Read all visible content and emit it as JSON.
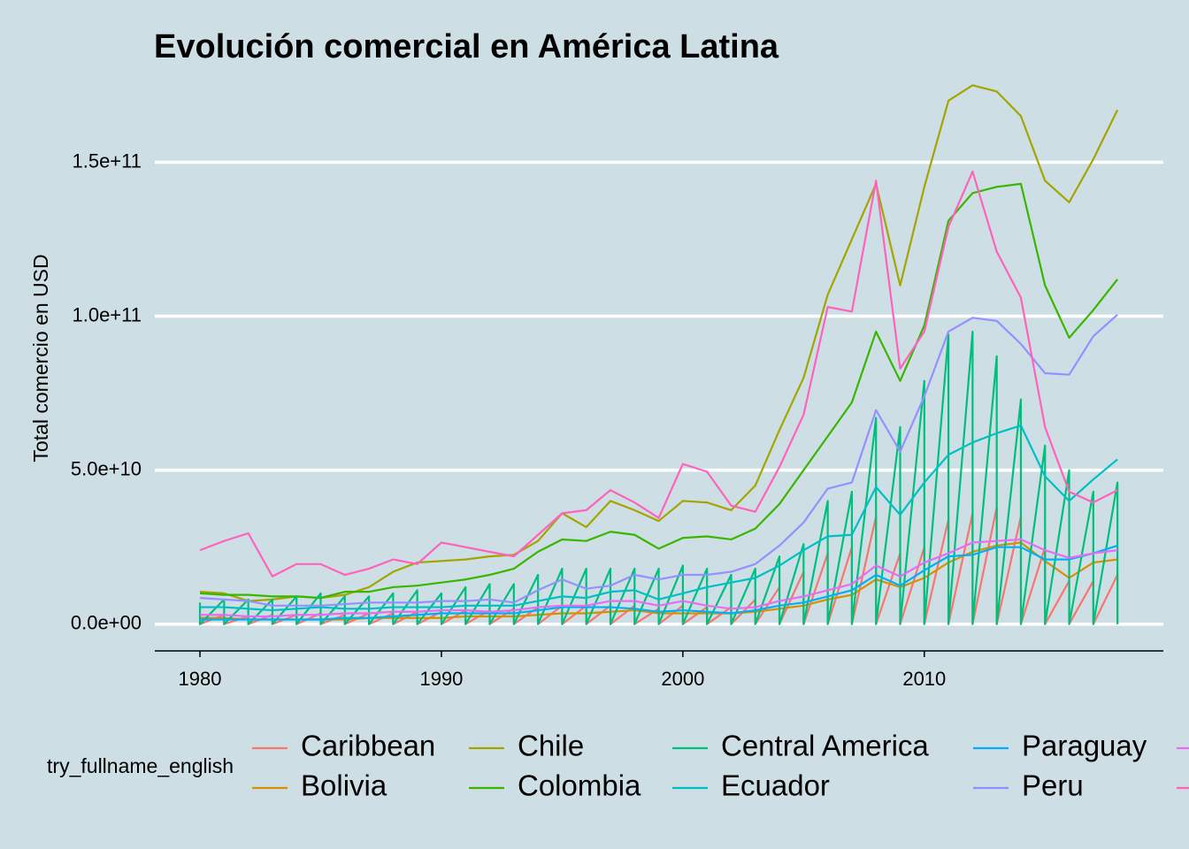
{
  "chart_data": {
    "type": "line",
    "title": "Evolución comercial en América Latina",
    "ylabel": "Total comercio en USD",
    "legend_title": "try_fullname_english",
    "x": [
      1980,
      1981,
      1982,
      1983,
      1984,
      1985,
      1986,
      1987,
      1988,
      1989,
      1990,
      1991,
      1992,
      1993,
      1994,
      1995,
      1996,
      1997,
      1998,
      1999,
      2000,
      2001,
      2002,
      2003,
      2004,
      2005,
      2006,
      2007,
      2008,
      2009,
      2010,
      2011,
      2012,
      2013,
      2014,
      2015,
      2016,
      2017,
      2018
    ],
    "xlim": [
      1978.13,
      2019.9
    ],
    "xticks": [
      1980,
      1990,
      2000,
      2010
    ],
    "ylim": [
      -8700000000.0,
      178000000000.0
    ],
    "yticks": [
      {
        "value": 0,
        "label": "0.0e+00"
      },
      {
        "value": 50000000000.0,
        "label": "5.0e+10"
      },
      {
        "value": 100000000000.0,
        "label": "1.0e+11"
      },
      {
        "value": 150000000000.0,
        "label": "1.5e+11"
      }
    ],
    "grid": true,
    "legend": "bottom",
    "series": [
      {
        "name": "Caribbean",
        "color": "#F8766D",
        "x": [
          1980,
          1980,
          1981,
          1981,
          1982,
          1982,
          1983,
          1983,
          1984,
          1984,
          1985,
          1985,
          1986,
          1986,
          1987,
          1987,
          1988,
          1988,
          1989,
          1989,
          1990,
          1990,
          1991,
          1991,
          1992,
          1992,
          1993,
          1993,
          1994,
          1994,
          1995,
          1995,
          1996,
          1996,
          1997,
          1997,
          1998,
          1998,
          1999,
          1999,
          2000,
          2000,
          2001,
          2001,
          2002,
          2002,
          2003,
          2003,
          2004,
          2004,
          2005,
          2005,
          2006,
          2006,
          2007,
          2007,
          2008,
          2008,
          2009,
          2009,
          2010,
          2010,
          2011,
          2011,
          2012,
          2012,
          2013,
          2013,
          2014,
          2014,
          2015,
          2015,
          2016,
          2016,
          2017,
          2017,
          2018,
          2018
        ],
        "values": [
          3000000000.0,
          0,
          3000000000.0,
          0,
          2500000000.0,
          0,
          3000000000.0,
          0,
          3000000000.0,
          0,
          3500000000.0,
          0,
          3000000000.0,
          0,
          3500000000.0,
          0,
          3500000000.0,
          0,
          4000000000.0,
          0,
          4000000000.0,
          0,
          4500000000.0,
          0,
          4500000000.0,
          0,
          5000000000.0,
          0,
          5500000000.0,
          0,
          6000000000.0,
          0,
          6000000000.0,
          0,
          6000000000.0,
          0,
          6000000000.0,
          0,
          5000000000.0,
          0,
          6000000000.0,
          0,
          5500000000.0,
          0,
          5500000000.0,
          0,
          8000000000.0,
          0,
          12000000000.0,
          0,
          17000000000.0,
          0,
          23000000000.0,
          0,
          25000000000.0,
          0,
          35000000000.0,
          0,
          23000000000.0,
          0,
          25000000000.0,
          0,
          34000000000.0,
          0,
          36000000000.0,
          0,
          38000000000.0,
          0,
          35000000000.0,
          0,
          25000000000.0,
          0,
          14000000000.0,
          0,
          14000000000.0,
          0,
          16000000000.0,
          0
        ]
      },
      {
        "name": "Bolivia",
        "color": "#D89000",
        "values": [
          2000000000.0,
          2000000000.0,
          1500000000.0,
          1500000000.0,
          1500000000.0,
          1500000000.0,
          1500000000.0,
          2000000000.0,
          2000000000.0,
          2000000000.0,
          2000000000.0,
          2500000000.0,
          2500000000.0,
          2500000000.0,
          3000000000.0,
          3500000000.0,
          3500000000.0,
          4000000000.0,
          4500000000.0,
          3500000000.0,
          3500000000.0,
          3500000000.0,
          3500000000.0,
          4000000000.0,
          5000000000.0,
          6000000000.0,
          8000000000.0,
          9500000000.0,
          14500000000.0,
          12000000000.0,
          15000000000.0,
          20000000000.0,
          23500000000.0,
          25500000000.0,
          26500000000.0,
          20500000000.0,
          15000000000.0,
          20000000000.0,
          21000000000.0
        ]
      },
      {
        "name": "Chile",
        "color": "#A3A500",
        "values": [
          10500000000.0,
          10000000000.0,
          7500000000.0,
          8000000000.0,
          9000000000.0,
          8500000000.0,
          9500000000.0,
          12000000000.0,
          17000000000.0,
          20000000000.0,
          20500000000.0,
          21000000000.0,
          22000000000.0,
          22500000000.0,
          27000000000.0,
          36000000000.0,
          31500000000.0,
          40000000000.0,
          37000000000.0,
          33500000000.0,
          40000000000.0,
          39500000000.0,
          37000000000.0,
          45000000000.0,
          63000000000.0,
          80000000000.0,
          107000000000.0,
          125000000000.0,
          143000000000.0,
          110000000000.0,
          142000000000.0,
          170000000000.0,
          175000000000.0,
          173000000000.0,
          165000000000.0,
          144000000000.0,
          137000000000.0,
          151000000000.0,
          167000000000.0
        ]
      },
      {
        "name": "Colombia",
        "color": "#39B600",
        "values": [
          10000000000.0,
          9500000000.0,
          9500000000.0,
          9000000000.0,
          9000000000.0,
          8500000000.0,
          10500000000.0,
          10500000000.0,
          12000000000.0,
          12500000000.0,
          13500000000.0,
          14500000000.0,
          16000000000.0,
          18000000000.0,
          23500000000.0,
          27500000000.0,
          27000000000.0,
          30000000000.0,
          29000000000.0,
          24500000000.0,
          28000000000.0,
          28500000000.0,
          27500000000.0,
          31000000000.0,
          39000000000.0,
          50000000000.0,
          61000000000.0,
          72000000000.0,
          95000000000.0,
          79000000000.0,
          97000000000.0,
          131000000000.0,
          140000000000.0,
          142000000000.0,
          143000000000.0,
          110000000000.0,
          93000000000.0,
          102000000000.0,
          112000000000.0
        ]
      },
      {
        "name": "Central America",
        "color": "#00BF7D",
        "x": [
          1980,
          1980,
          1981,
          1981,
          1982,
          1982,
          1983,
          1983,
          1984,
          1984,
          1985,
          1985,
          1986,
          1986,
          1987,
          1987,
          1988,
          1988,
          1989,
          1989,
          1990,
          1990,
          1991,
          1991,
          1992,
          1992,
          1993,
          1993,
          1994,
          1994,
          1995,
          1995,
          1996,
          1996,
          1997,
          1997,
          1998,
          1998,
          1999,
          1999,
          2000,
          2000,
          2001,
          2001,
          2002,
          2002,
          2003,
          2003,
          2004,
          2004,
          2005,
          2005,
          2006,
          2006,
          2007,
          2007,
          2008,
          2008,
          2009,
          2009,
          2010,
          2010,
          2011,
          2011,
          2012,
          2012,
          2013,
          2013,
          2014,
          2014,
          2015,
          2015,
          2016,
          2016,
          2017,
          2017,
          2018,
          2018
        ],
        "values": [
          7000000000.0,
          0,
          8000000000.0,
          0,
          8000000000.0,
          0,
          8000000000.0,
          0,
          9000000000.0,
          0,
          10000000000.0,
          0,
          9000000000.0,
          0,
          9000000000.0,
          0,
          10000000000.0,
          0,
          11000000000.0,
          0,
          10000000000.0,
          0,
          12000000000.0,
          0,
          13000000000.0,
          0,
          13000000000.0,
          0,
          16000000000.0,
          0,
          18000000000.0,
          0,
          18000000000.0,
          0,
          18000000000.0,
          0,
          18000000000.0,
          0,
          18000000000.0,
          0,
          19000000000.0,
          0,
          18000000000.0,
          0,
          16000000000.0,
          0,
          18000000000.0,
          0,
          22000000000.0,
          0,
          26000000000.0,
          0,
          40000000000.0,
          0,
          43000000000.0,
          0,
          67000000000.0,
          0,
          64000000000.0,
          0,
          79000000000.0,
          0,
          94000000000.0,
          0,
          95000000000.0,
          0,
          87000000000.0,
          0,
          73000000000.0,
          0,
          58000000000.0,
          0,
          50000000000.0,
          0,
          43000000000.0,
          0,
          46000000000.0,
          0
        ]
      },
      {
        "name": "Ecuador",
        "color": "#00BFC4",
        "values": [
          5500000000.0,
          5500000000.0,
          5000000000.0,
          4500000000.0,
          5000000000.0,
          5500000000.0,
          5000000000.0,
          5000000000.0,
          5500000000.0,
          5500000000.0,
          5500000000.0,
          6000000000.0,
          6000000000.0,
          6000000000.0,
          7500000000.0,
          9000000000.0,
          8500000000.0,
          10500000000.0,
          11000000000.0,
          8000000000.0,
          10000000000.0,
          12000000000.0,
          13500000000.0,
          15000000000.0,
          19000000000.0,
          24000000000.0,
          28500000000.0,
          29000000000.0,
          44500000000.0,
          35500000000.0,
          46000000000.0,
          55000000000.0,
          59000000000.0,
          62000000000.0,
          64500000000.0,
          48000000000.0,
          40000000000.0,
          47000000000.0,
          53500000000.0
        ]
      },
      {
        "name": "Paraguay",
        "color": "#00B0F6",
        "values": [
          1500000000.0,
          1500000000.0,
          1500000000.0,
          1500000000.0,
          1500000000.0,
          1500000000.0,
          2000000000.0,
          2000000000.0,
          2500000000.0,
          3000000000.0,
          3500000000.0,
          3500000000.0,
          3500000000.0,
          3500000000.0,
          4500000000.0,
          5500000000.0,
          5500000000.0,
          5500000000.0,
          5000000000.0,
          4000000000.0,
          4500000000.0,
          4000000000.0,
          3500000000.0,
          4500000000.0,
          6000000000.0,
          7000000000.0,
          9000000000.0,
          11000000000.0,
          16000000000.0,
          12500000000.0,
          17500000000.0,
          22000000000.0,
          22500000000.0,
          25000000000.0,
          25000000000.0,
          21000000000.0,
          21000000000.0,
          23000000000.0,
          25500000000.0
        ]
      },
      {
        "name": "Peru",
        "color": "#9590FF",
        "values": [
          8500000000.0,
          8000000000.0,
          7500000000.0,
          6000000000.0,
          6000000000.0,
          6000000000.0,
          6500000000.0,
          7000000000.0,
          7000000000.0,
          7000000000.0,
          7500000000.0,
          7500000000.0,
          8000000000.0,
          7000000000.0,
          11000000000.0,
          14500000000.0,
          11500000000.0,
          12500000000.0,
          16000000000.0,
          14500000000.0,
          16000000000.0,
          16000000000.0,
          17000000000.0,
          19500000000.0,
          25500000000.0,
          33000000000.0,
          44000000000.0,
          46000000000.0,
          69500000000.0,
          56000000000.0,
          74000000000.0,
          95000000000.0,
          99500000000.0,
          98500000000.0,
          91000000000.0,
          81500000000.0,
          81000000000.0,
          93500000000.0,
          100500000000.0
        ]
      },
      {
        "color": "#E76BF3",
        "values": [
          3000000000.0,
          3000000000.0,
          2500000000.0,
          2500000000.0,
          3000000000.0,
          3000000000.0,
          3500000000.0,
          3500000000.0,
          4000000000.0,
          4000000000.0,
          4500000000.0,
          4500000000.0,
          4000000000.0,
          4500000000.0,
          5500000000.0,
          6000000000.0,
          6000000000.0,
          7500000000.0,
          7500000000.0,
          6000000000.0,
          7500000000.0,
          6000000000.0,
          5000000000.0,
          5500000000.0,
          7500000000.0,
          9000000000.0,
          11000000000.0,
          13000000000.0,
          19000000000.0,
          15500000000.0,
          20000000000.0,
          23000000000.0,
          26500000000.0,
          27000000000.0,
          27500000000.0,
          24000000000.0,
          21500000000.0,
          23000000000.0,
          24000000000.0
        ]
      },
      {
        "color": "#FF62BC",
        "values": [
          24000000000.0,
          27000000000.0,
          29500000000.0,
          15500000000.0,
          19500000000.0,
          19500000000.0,
          16000000000.0,
          18000000000.0,
          21000000000.0,
          19500000000.0,
          26500000000.0,
          25000000000.0,
          23500000000.0,
          22000000000.0,
          29000000000.0,
          36000000000.0,
          37000000000.0,
          43500000000.0,
          39500000000.0,
          34500000000.0,
          52000000000.0,
          49500000000.0,
          38500000000.0,
          36500000000.0,
          51000000000.0,
          68000000000.0,
          103000000000.0,
          101500000000.0,
          144000000000.0,
          83000000000.0,
          95000000000.0,
          129000000000.0,
          147000000000.0,
          121000000000.0,
          106000000000.0,
          64000000000.0,
          43000000000.0,
          39500000000.0,
          43500000000.0
        ]
      }
    ]
  }
}
